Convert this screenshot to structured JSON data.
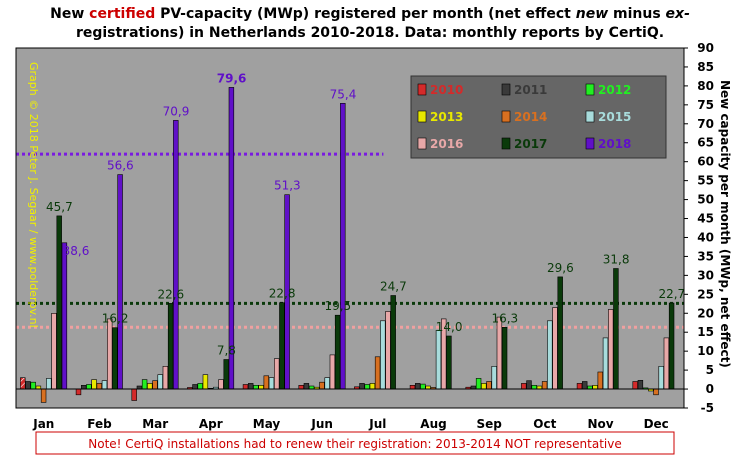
{
  "chart_data": {
    "type": "bar",
    "title_parts": [
      {
        "text": "New ",
        "color": "#000000",
        "italic": false
      },
      {
        "text": "certified",
        "color": "#cc0000",
        "italic": false
      },
      {
        "text": " PV-capacity (MWp) registered per month (net effect ",
        "color": "#000000",
        "italic": false
      },
      {
        "text": "new",
        "color": "#000000",
        "italic": true
      },
      {
        "text": " minus ",
        "color": "#000000",
        "italic": false
      },
      {
        "text": "ex-",
        "color": "#000000",
        "italic": true
      }
    ],
    "title_line2": "registrations) in Netherlands 2010-2018. Data: monthly reports by CertiQ.",
    "ylabel": "New capacity per month (MWp, net effect)",
    "credit": "Graph © 2018 Peter J. Segaar / www.polderpv.nl",
    "note": "Note! CertiQ installations  had to renew their registration: 2013-2014  NOT representative",
    "ylim": [
      -5,
      90
    ],
    "yticks": [
      -5,
      0,
      5,
      10,
      15,
      20,
      25,
      30,
      35,
      40,
      45,
      50,
      55,
      60,
      65,
      70,
      75,
      80,
      85,
      90
    ],
    "categories": [
      "Jan",
      "Feb",
      "Mar",
      "Apr",
      "May",
      "Jun",
      "Jul",
      "Aug",
      "Sep",
      "Oct",
      "Nov",
      "Dec"
    ],
    "series": [
      {
        "name": "2010",
        "color": "#d42a2a",
        "values": [
          3.0,
          -1.5,
          -3.0,
          0.4,
          1.2,
          1.0,
          0.6,
          1.0,
          0.5,
          1.5,
          1.5,
          2.0
        ]
      },
      {
        "name": "2011",
        "color": "#3a3a3a",
        "values": [
          2.0,
          1.0,
          0.8,
          1.2,
          1.5,
          1.5,
          1.5,
          1.5,
          0.8,
          2.2,
          2.0,
          2.3
        ]
      },
      {
        "name": "2012",
        "color": "#22ee22",
        "values": [
          1.8,
          1.2,
          2.5,
          1.5,
          1.0,
          0.8,
          1.2,
          1.3,
          2.8,
          1.0,
          0.8,
          0.3
        ]
      },
      {
        "name": "2013",
        "color": "#e8e800",
        "values": [
          0.8,
          2.5,
          1.5,
          3.8,
          1.0,
          0.5,
          1.5,
          0.8,
          1.5,
          0.8,
          1.0,
          -0.5
        ]
      },
      {
        "name": "2014",
        "color": "#d87020",
        "values": [
          -3.5,
          1.5,
          2.2,
          0.2,
          3.5,
          1.8,
          8.5,
          0.4,
          2.0,
          2.0,
          4.5,
          -1.5
        ]
      },
      {
        "name": "2015",
        "color": "#a8dcdc",
        "values": [
          2.8,
          2.2,
          3.8,
          0.5,
          3.0,
          3.0,
          18.0,
          15.5,
          6.0,
          18.0,
          13.5,
          6.0
        ]
      },
      {
        "name": "2016",
        "color": "#e8a8a8",
        "values": [
          20.0,
          18.5,
          6.0,
          2.5,
          8.0,
          9.0,
          20.5,
          18.5,
          19.0,
          21.5,
          21.0,
          13.5
        ]
      },
      {
        "name": "2017",
        "color": "#0a3a0a",
        "values": [
          45.7,
          16.2,
          22.6,
          7.8,
          22.8,
          19.5,
          24.7,
          14.0,
          16.3,
          29.6,
          31.8,
          22.7
        ]
      },
      {
        "name": "2018",
        "color": "#6010c8",
        "values": [
          38.6,
          56.6,
          70.9,
          79.6,
          51.3,
          75.4,
          null,
          null,
          null,
          null,
          null,
          null
        ]
      }
    ],
    "labels_2017": [
      "45,7",
      "16,2",
      "22,6",
      "7,8",
      "22,8",
      "19,5",
      "24,7",
      "14,0",
      "16,3",
      "29,6",
      "31,8",
      "22,7"
    ],
    "labels_2018": [
      "38,6",
      "56,6",
      "70,9",
      "79,6",
      "51,3",
      "75,4"
    ],
    "reference_lines": [
      {
        "value": 62.0,
        "color": "#7a1ae0",
        "span_months": 6.6
      },
      {
        "value": 22.6,
        "color": "#0a3a0a",
        "span_months": 12
      },
      {
        "value": 16.3,
        "color": "#f0a0a0",
        "span_months": 12
      }
    ],
    "legend_position": "top-right",
    "grid": false
  }
}
